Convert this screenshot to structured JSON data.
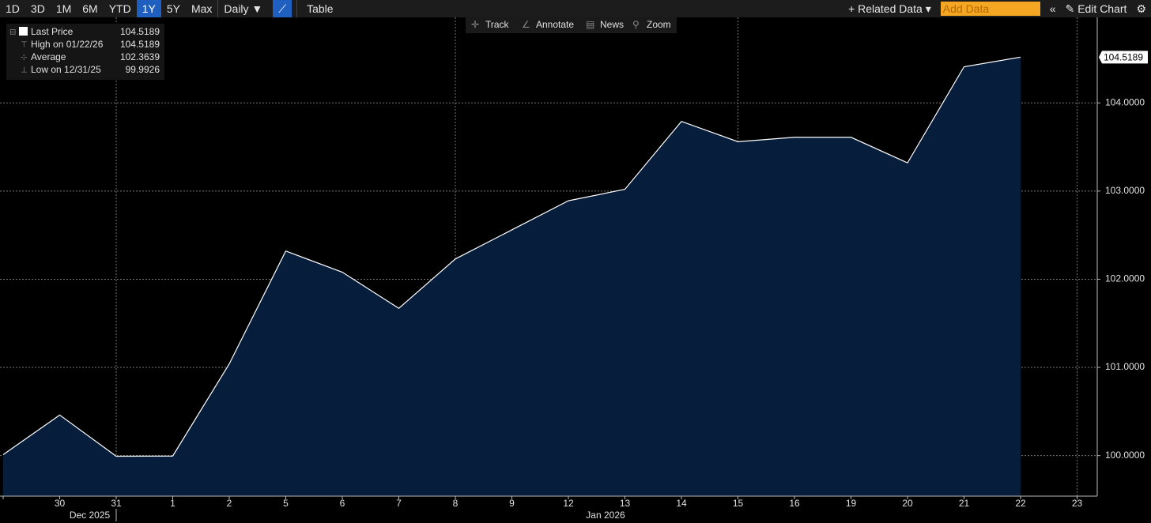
{
  "toolbar": {
    "ranges": [
      "1D",
      "3D",
      "1M",
      "6M",
      "YTD",
      "1Y",
      "5Y",
      "Max"
    ],
    "active_range": "1Y",
    "frequency": "Daily ▼",
    "table": "Table",
    "related_data": "+ Related Data ▾",
    "add_data_placeholder": "Add Data",
    "collapse": "«",
    "edit_chart": "Edit Chart"
  },
  "chart_tools": [
    "Track",
    "Annotate",
    "News",
    "Zoom"
  ],
  "legend": {
    "items": [
      {
        "label": "Last Price",
        "value": "104.5189"
      },
      {
        "label": "High on 01/22/26",
        "value": "104.5189"
      },
      {
        "label": "Average",
        "value": "102.3639"
      },
      {
        "label": "Low on 12/31/25",
        "value": "99.9926"
      }
    ]
  },
  "chart_data": {
    "type": "area",
    "color": "#ffffff",
    "fill": "#061d3b",
    "categories": [
      null,
      "30",
      "31",
      "1",
      "2",
      "5",
      "6",
      "7",
      "8",
      "9",
      "12",
      "13",
      "14",
      "15",
      "16",
      "19",
      "20",
      "21",
      "22",
      "23"
    ],
    "values": [
      100.01,
      100.46,
      99.9926,
      99.995,
      101.04,
      102.32,
      102.08,
      101.67,
      102.23,
      102.56,
      102.89,
      103.02,
      103.79,
      103.56,
      103.61,
      103.61,
      103.32,
      104.41,
      104.5189,
      null
    ],
    "month_labels": [
      "Dec 2025",
      "Jan 2026"
    ],
    "ylim": [
      99.54,
      104.97
    ],
    "yticks": [
      {
        "value": 100,
        "label": "100.0000"
      },
      {
        "value": 101,
        "label": "101.0000"
      },
      {
        "value": 102,
        "label": "102.0000"
      },
      {
        "value": 103,
        "label": "103.0000"
      },
      {
        "value": 104,
        "label": "104.0000"
      }
    ],
    "grid": true
  }
}
